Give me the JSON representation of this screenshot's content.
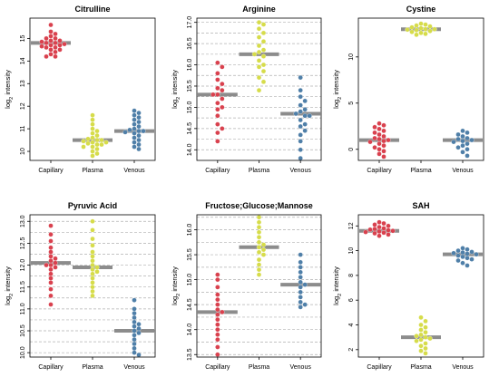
{
  "figure": {
    "ylabel_base": "log",
    "ylabel_sub": "2",
    "ylabel_rest": " intensity"
  },
  "colors": {
    "Capillary": "#d9414e",
    "Plasma": "#d6dc4a",
    "Venous": "#4f7fa8",
    "median": "#8c8c8c",
    "grid": "#b0b0b0"
  },
  "chart_data": [
    {
      "type": "scatter",
      "title": "Citrulline",
      "categories": [
        "Capillary",
        "Plasma",
        "Venous"
      ],
      "ylim": [
        9.6,
        15.9
      ],
      "yticks": [
        10,
        11,
        12,
        13,
        14,
        15
      ],
      "grid": false,
      "series": [
        {
          "name": "Capillary",
          "median": 14.8,
          "values": [
            15.6,
            15.3,
            15.2,
            15.1,
            15.0,
            15.0,
            14.9,
            14.9,
            14.85,
            14.8,
            14.8,
            14.75,
            14.7,
            14.7,
            14.65,
            14.6,
            14.6,
            14.5,
            14.5,
            14.4,
            14.3,
            14.2,
            14.2
          ]
        },
        {
          "name": "Plasma",
          "median": 10.5,
          "values": [
            11.6,
            11.4,
            11.2,
            11.0,
            10.9,
            10.8,
            10.7,
            10.6,
            10.55,
            10.5,
            10.5,
            10.45,
            10.4,
            10.4,
            10.35,
            10.3,
            10.3,
            10.2,
            10.2,
            10.1,
            10.0,
            9.9,
            9.8
          ]
        },
        {
          "name": "Venous",
          "median": 10.9,
          "values": [
            11.8,
            11.7,
            11.6,
            11.5,
            11.4,
            11.3,
            11.2,
            11.1,
            11.0,
            10.95,
            10.9,
            10.9,
            10.85,
            10.8,
            10.7,
            10.6,
            10.5,
            10.4,
            10.3,
            10.2,
            10.1
          ]
        }
      ]
    },
    {
      "type": "scatter",
      "title": "Arginine",
      "categories": [
        "Capillary",
        "Plasma",
        "Venous"
      ],
      "ylim": [
        13.75,
        17.1
      ],
      "yticks": [
        14.0,
        14.5,
        15.0,
        15.5,
        16.0,
        16.5,
        17.0
      ],
      "grid": true,
      "gridlines": [
        14.0,
        14.25,
        14.5,
        14.75,
        15.0,
        15.25,
        15.5,
        15.75,
        16.0,
        16.25,
        16.5,
        16.75,
        17.0
      ],
      "series": [
        {
          "name": "Capillary",
          "median": 15.3,
          "values": [
            16.05,
            15.95,
            15.8,
            15.65,
            15.55,
            15.45,
            15.4,
            15.3,
            15.3,
            15.2,
            15.1,
            15.0,
            14.95,
            14.8,
            14.6,
            14.5,
            14.4,
            14.2
          ]
        },
        {
          "name": "Plasma",
          "median": 16.25,
          "values": [
            17.0,
            16.95,
            16.85,
            16.75,
            16.65,
            16.55,
            16.45,
            16.35,
            16.3,
            16.25,
            16.2,
            16.1,
            16.0,
            15.95,
            15.85,
            15.7,
            15.6,
            15.4
          ]
        },
        {
          "name": "Venous",
          "median": 14.85,
          "values": [
            15.7,
            15.4,
            15.25,
            15.15,
            15.05,
            14.95,
            14.9,
            14.85,
            14.8,
            14.8,
            14.7,
            14.6,
            14.55,
            14.45,
            14.35,
            14.2,
            14.0,
            13.8
          ]
        }
      ]
    },
    {
      "type": "scatter",
      "title": "Cystine",
      "categories": [
        "Capillary",
        "Plasma",
        "Venous"
      ],
      "ylim": [
        -1.2,
        14.2
      ],
      "yticks": [
        0,
        5,
        10
      ],
      "grid": false,
      "series": [
        {
          "name": "Capillary",
          "median": 1.0,
          "values": [
            2.8,
            2.6,
            2.4,
            2.2,
            2.0,
            1.8,
            1.6,
            1.4,
            1.2,
            1.1,
            1.0,
            0.9,
            0.8,
            0.6,
            0.4,
            0.2,
            0.0,
            -0.2,
            -0.5,
            -0.8
          ]
        },
        {
          "name": "Plasma",
          "median": 13.0,
          "values": [
            13.6,
            13.5,
            13.4,
            13.3,
            13.2,
            13.1,
            13.0,
            13.0,
            12.95,
            12.9,
            12.8,
            12.7,
            12.6,
            12.5,
            12.4
          ]
        },
        {
          "name": "Venous",
          "median": 1.0,
          "values": [
            2.0,
            1.8,
            1.6,
            1.4,
            1.2,
            1.1,
            1.0,
            0.9,
            0.8,
            0.6,
            0.4,
            0.2,
            0.0,
            -0.3,
            -0.7
          ]
        }
      ]
    },
    {
      "type": "scatter",
      "title": "Pyruvic Acid",
      "categories": [
        "Capillary",
        "Plasma",
        "Venous"
      ],
      "ylim": [
        9.9,
        13.15
      ],
      "yticks": [
        10.0,
        10.5,
        11.0,
        11.5,
        12.0,
        12.5,
        13.0
      ],
      "grid": true,
      "gridlines": [
        10.0,
        10.25,
        10.5,
        10.75,
        11.0,
        11.25,
        11.5,
        11.75,
        12.0,
        12.25,
        12.5,
        12.75,
        13.0
      ],
      "series": [
        {
          "name": "Capillary",
          "median": 12.05,
          "values": [
            12.9,
            12.7,
            12.55,
            12.4,
            12.3,
            12.2,
            12.15,
            12.1,
            12.05,
            12.0,
            12.0,
            11.95,
            11.9,
            11.8,
            11.7,
            11.6,
            11.45,
            11.3,
            11.1
          ]
        },
        {
          "name": "Plasma",
          "median": 11.95,
          "values": [
            13.0,
            12.8,
            12.6,
            12.45,
            12.3,
            12.2,
            12.1,
            12.0,
            11.95,
            11.9,
            11.85,
            11.8,
            11.7,
            11.6,
            11.5,
            11.4,
            11.3
          ]
        },
        {
          "name": "Venous",
          "median": 10.5,
          "values": [
            11.2,
            11.0,
            10.9,
            10.8,
            10.7,
            10.65,
            10.6,
            10.55,
            10.5,
            10.45,
            10.4,
            10.3,
            10.2,
            10.1,
            10.0,
            9.95
          ]
        }
      ]
    },
    {
      "type": "scatter",
      "title": "Fructose;Glucose;Mannose",
      "categories": [
        "Capillary",
        "Plasma",
        "Venous"
      ],
      "ylim": [
        13.45,
        16.3
      ],
      "yticks": [
        13.5,
        14.0,
        14.5,
        15.0,
        15.5,
        16.0
      ],
      "grid": true,
      "gridlines": [
        13.5,
        13.75,
        14.0,
        14.25,
        14.5,
        14.75,
        15.0,
        15.25,
        15.5,
        15.75,
        16.0,
        16.25
      ],
      "series": [
        {
          "name": "Capillary",
          "median": 14.35,
          "values": [
            15.1,
            15.0,
            14.85,
            14.7,
            14.6,
            14.5,
            14.4,
            14.35,
            14.3,
            14.2,
            14.1,
            14.0,
            13.9,
            13.8,
            13.65,
            13.5
          ]
        },
        {
          "name": "Plasma",
          "median": 15.65,
          "values": [
            16.25,
            16.15,
            16.05,
            15.95,
            15.85,
            15.75,
            15.7,
            15.65,
            15.6,
            15.55,
            15.5,
            15.4,
            15.3,
            15.2,
            15.1
          ]
        },
        {
          "name": "Venous",
          "median": 14.9,
          "values": [
            15.5,
            15.35,
            15.25,
            15.15,
            15.05,
            14.95,
            14.9,
            14.85,
            14.75,
            14.65,
            14.55,
            14.5,
            14.45
          ]
        }
      ]
    },
    {
      "type": "scatter",
      "title": "SAH",
      "categories": [
        "Capillary",
        "Plasma",
        "Venous"
      ],
      "ylim": [
        1.4,
        12.9
      ],
      "yticks": [
        2,
        4,
        6,
        8,
        10,
        12
      ],
      "grid": false,
      "series": [
        {
          "name": "Capillary",
          "median": 11.6,
          "values": [
            12.3,
            12.2,
            12.1,
            12.0,
            11.9,
            11.8,
            11.75,
            11.7,
            11.65,
            11.6,
            11.55,
            11.5,
            11.45,
            11.4,
            11.3,
            11.2
          ]
        },
        {
          "name": "Plasma",
          "median": 3.0,
          "values": [
            4.6,
            4.3,
            4.0,
            3.8,
            3.6,
            3.4,
            3.2,
            3.1,
            3.0,
            2.9,
            2.8,
            2.7,
            2.5,
            2.3,
            2.1,
            1.9,
            1.7
          ]
        },
        {
          "name": "Venous",
          "median": 9.7,
          "values": [
            10.2,
            10.1,
            10.0,
            9.9,
            9.85,
            9.8,
            9.75,
            9.7,
            9.6,
            9.5,
            9.4,
            9.3,
            9.2,
            9.0,
            8.8
          ]
        }
      ]
    }
  ]
}
